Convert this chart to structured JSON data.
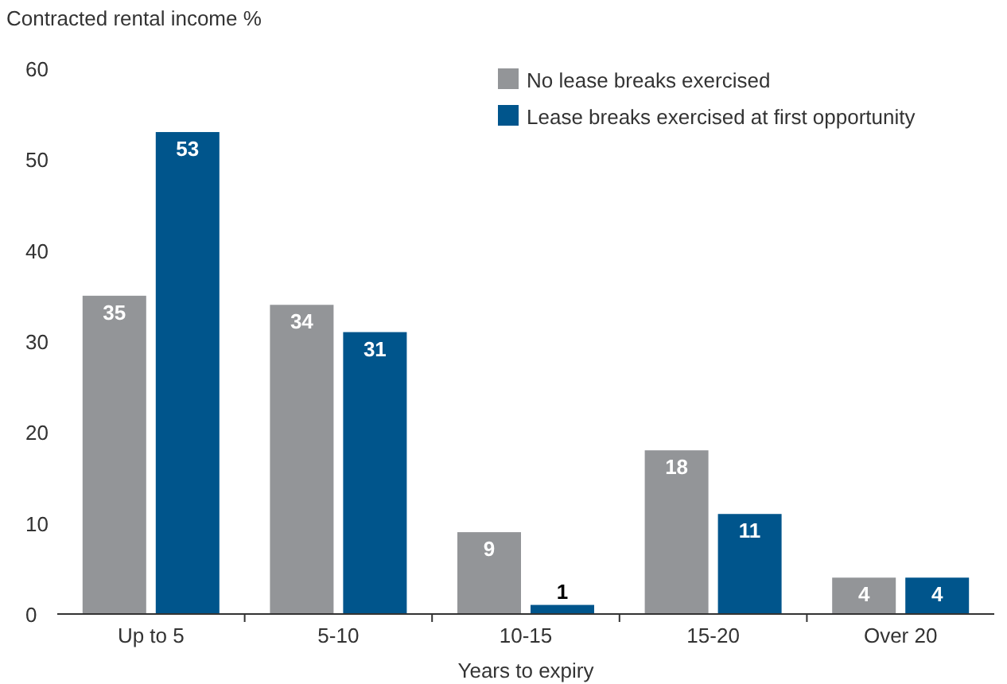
{
  "chart_data": {
    "type": "bar",
    "ylabel": "Contracted rental income %",
    "xlabel": "Years to expiry",
    "categories": [
      "Up to 5",
      "5-10",
      "10-15",
      "15-20",
      "Over 20"
    ],
    "series": [
      {
        "name": "No lease breaks exercised",
        "color": "#939598",
        "values": [
          35,
          34,
          9,
          18,
          4
        ]
      },
      {
        "name": "Lease breaks exercised at first opportunity",
        "color": "#00558c",
        "values": [
          53,
          31,
          1,
          11,
          4
        ]
      }
    ],
    "ylim": [
      0,
      60
    ],
    "yticks": [
      0,
      10,
      20,
      30,
      40,
      50,
      60
    ],
    "grid": false,
    "legend": "top right",
    "data_labels": true
  }
}
